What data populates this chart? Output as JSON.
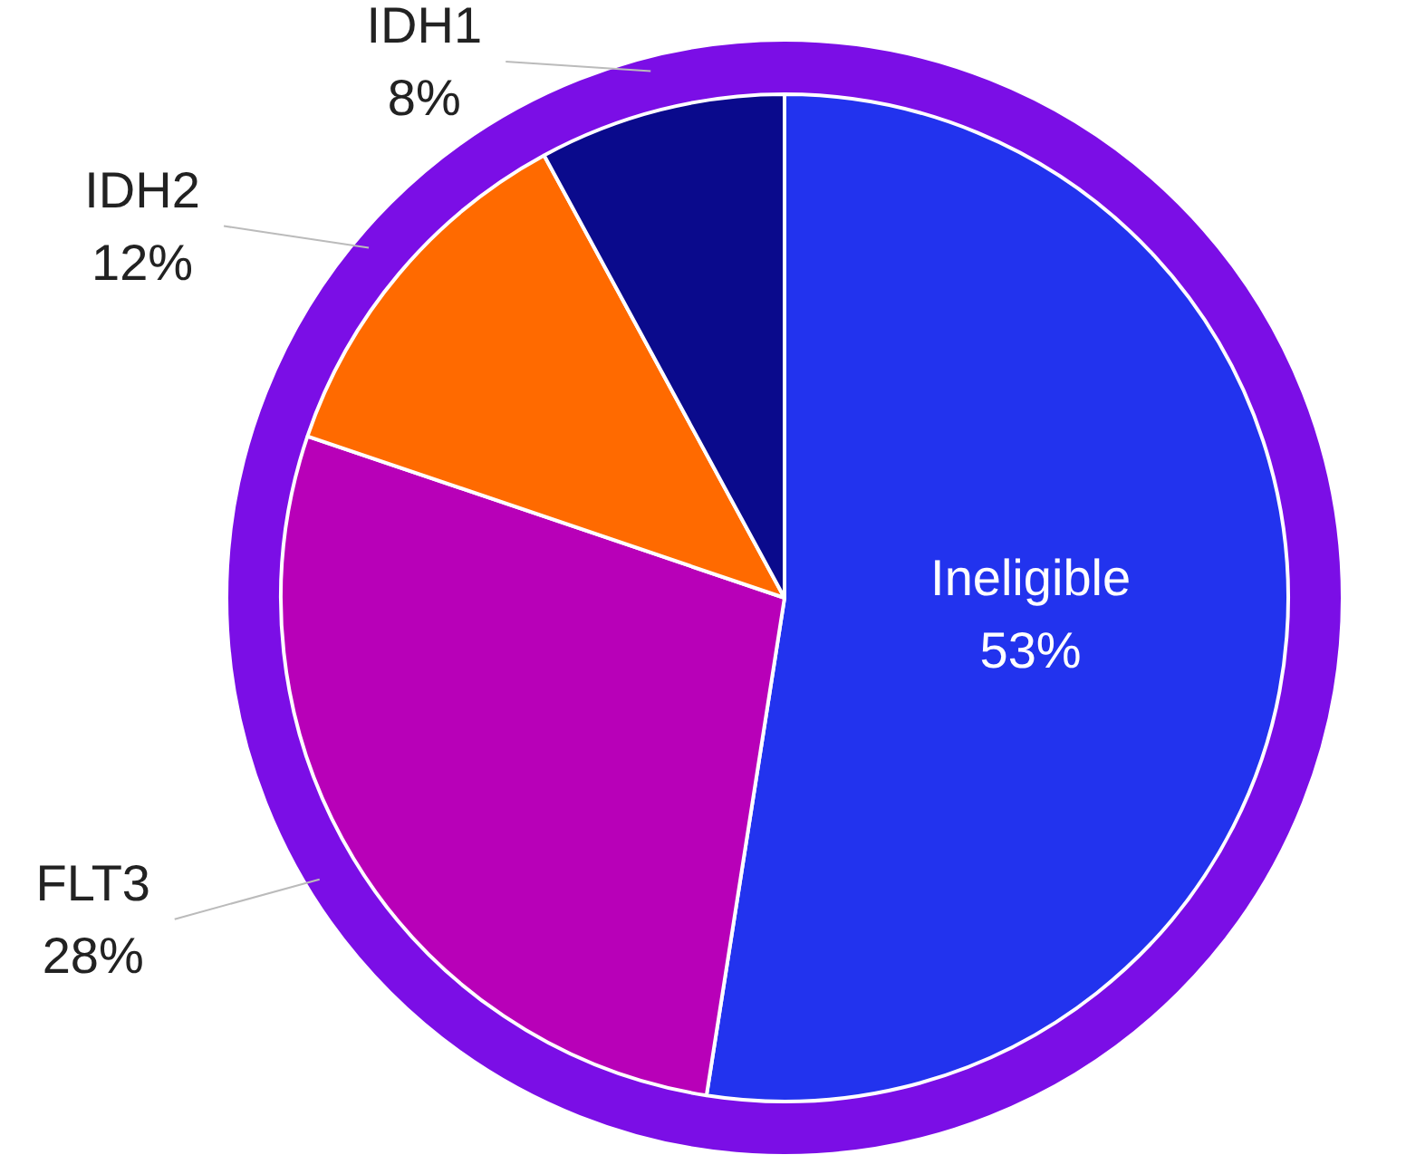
{
  "chart_data": {
    "type": "pie",
    "categories": [
      "Ineligible",
      "FLT3",
      "IDH2",
      "IDH1"
    ],
    "values": [
      53,
      28,
      12,
      8
    ],
    "colors": [
      "#2233ee",
      "#b800b8",
      "#ff6a00",
      "#0a0a8c"
    ],
    "value_labels": [
      "53%",
      "28%",
      "12%",
      "8%"
    ],
    "legend": false
  }
}
